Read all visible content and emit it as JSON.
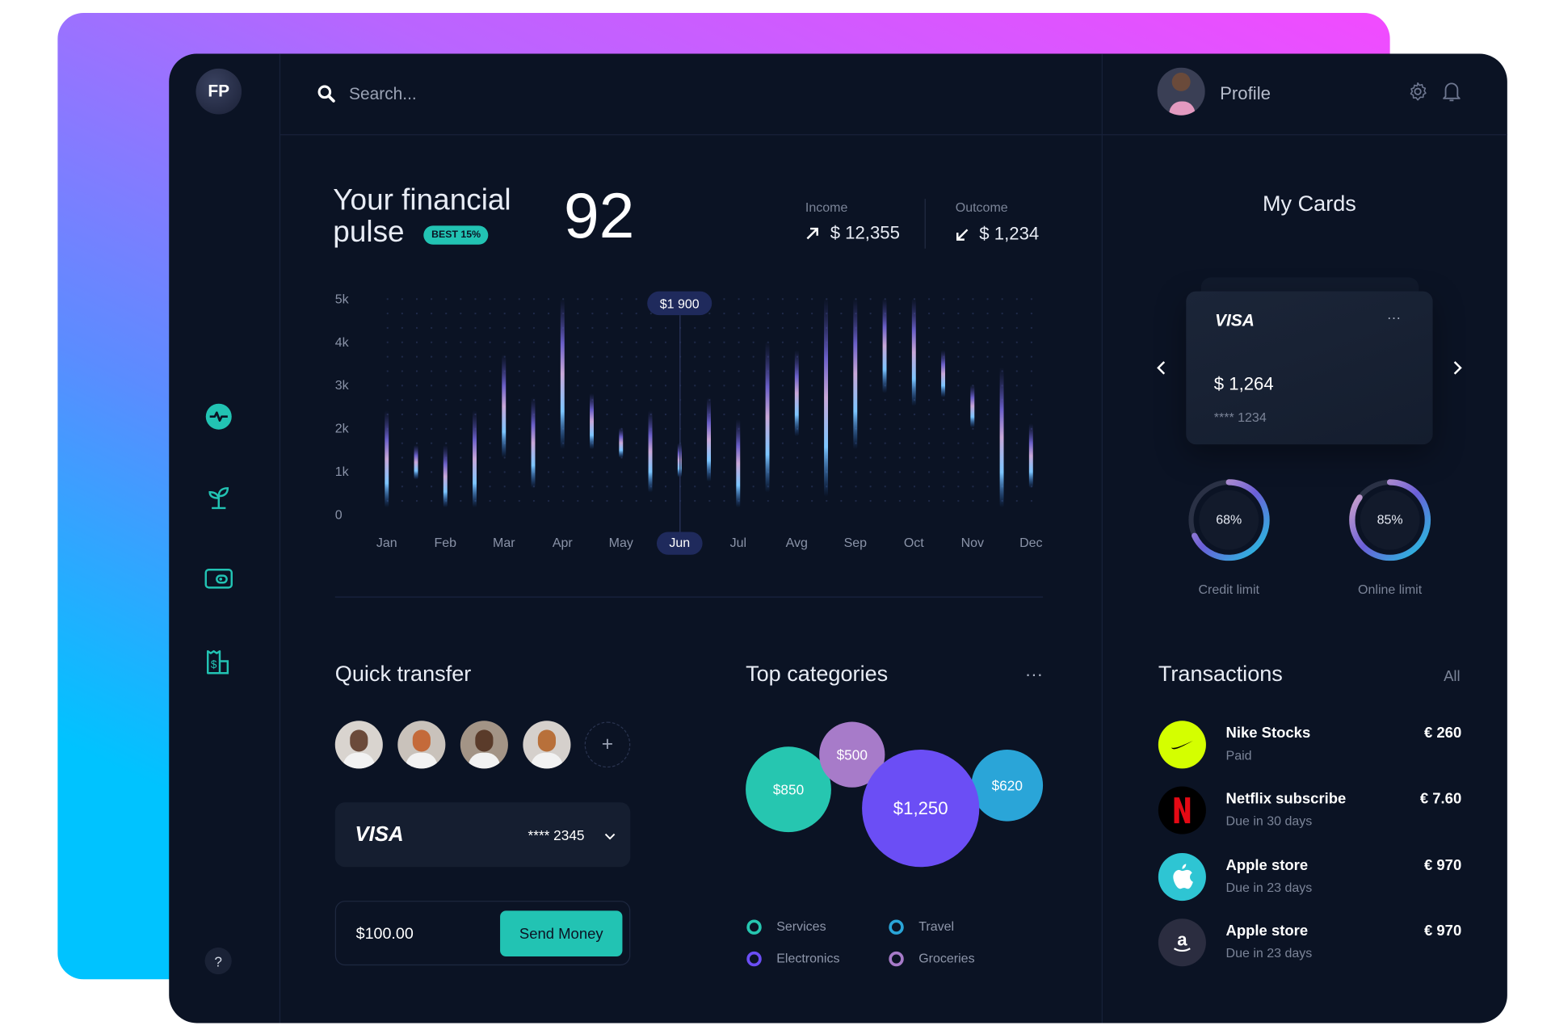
{
  "sidebar": {
    "logo": "FP",
    "items": [
      {
        "name": "pulse",
        "icon": "activity-icon"
      },
      {
        "name": "growth",
        "icon": "sprout-icon"
      },
      {
        "name": "wallet",
        "icon": "wallet-icon"
      },
      {
        "name": "receipt",
        "icon": "receipt-dollar-icon"
      }
    ],
    "help_label": "?"
  },
  "header": {
    "search_placeholder": "Search...",
    "profile_label": "Profile"
  },
  "pulse": {
    "title_line1": "Your financial",
    "title_line2": "pulse",
    "badge": "BEST 15%",
    "score": "92",
    "income_label": "Income",
    "income_value": "$ 12,355",
    "outcome_label": "Outcome",
    "outcome_value": "$ 1,234"
  },
  "chart_data": {
    "type": "bar",
    "subtype": "range-bars",
    "y_ticks": [
      "5k",
      "4k",
      "3k",
      "2k",
      "1k",
      "0"
    ],
    "ylim": [
      0,
      5000
    ],
    "x_labels": [
      "Jan",
      "Feb",
      "Mar",
      "Apr",
      "May",
      "Jun",
      "Jul",
      "Avg",
      "Sep",
      "Oct",
      "Nov",
      "Dec"
    ],
    "selected_label": "Jun",
    "tooltip": "$1 900",
    "bars": [
      {
        "low": 150,
        "high": 2400
      },
      {
        "low": 800,
        "high": 1600
      },
      {
        "low": 150,
        "high": 1600
      },
      {
        "low": 150,
        "high": 2400
      },
      {
        "low": 1300,
        "high": 3700
      },
      {
        "low": 600,
        "high": 2700
      },
      {
        "low": 1500,
        "high": 5000
      },
      {
        "low": 1500,
        "high": 2800
      },
      {
        "low": 1300,
        "high": 2000
      },
      {
        "low": 500,
        "high": 2400
      },
      {
        "low": 850,
        "high": 1650
      },
      {
        "low": 750,
        "high": 2700
      },
      {
        "low": 150,
        "high": 2200
      },
      {
        "low": 500,
        "high": 4000
      },
      {
        "low": 1800,
        "high": 3800
      },
      {
        "low": 400,
        "high": 5000
      },
      {
        "low": 1500,
        "high": 5000
      },
      {
        "low": 2800,
        "high": 5000
      },
      {
        "low": 2500,
        "high": 5000
      },
      {
        "low": 2700,
        "high": 3800
      },
      {
        "low": 2000,
        "high": 3000
      },
      {
        "low": 150,
        "high": 3400
      },
      {
        "low": 600,
        "high": 2100
      }
    ],
    "grid": "dots"
  },
  "quick_transfer": {
    "title": "Quick transfer",
    "contacts": [
      "contact-1",
      "contact-2",
      "contact-3",
      "contact-4"
    ],
    "add_label": "+",
    "card_brand": "VISA",
    "card_number": "**** 2345",
    "amount": "$100.00",
    "send_label": "Send Money"
  },
  "categories": {
    "title": "Top categories",
    "more": "···",
    "bubbles": [
      {
        "label": "$850",
        "value": 850,
        "color": "#26c6b0"
      },
      {
        "label": "$500",
        "value": 500,
        "color": "#a77bc9"
      },
      {
        "label": "$1,250",
        "value": 1250,
        "color": "#6b4ef5"
      },
      {
        "label": "$620",
        "value": 620,
        "color": "#2aa5d8"
      }
    ],
    "legend": [
      {
        "label": "Services",
        "color": "#26c6b0"
      },
      {
        "label": "Travel",
        "color": "#2aa5d8"
      },
      {
        "label": "Electronics",
        "color": "#6b4ef5"
      },
      {
        "label": "Groceries",
        "color": "#a77bc9"
      }
    ]
  },
  "cards": {
    "title": "My Cards",
    "brand": "VISA",
    "more": "···",
    "balance": "$ 1,264",
    "number": "**** 1234",
    "limits": [
      {
        "label": "Credit limit",
        "value_label": "68%",
        "percent": 68
      },
      {
        "label": "Online limit",
        "value_label": "85%",
        "percent": 85
      }
    ]
  },
  "transactions": {
    "title": "Transactions",
    "all_label": "All",
    "items": [
      {
        "name": "Nike Stocks",
        "status": "Paid",
        "amount": "€ 260",
        "icon": "nike-logo-icon",
        "color": "#d4ff00"
      },
      {
        "name": "Netflix subscribe",
        "status": "Due in 30 days",
        "amount": "€ 7.60",
        "icon": "netflix-logo-icon",
        "color": "#000000"
      },
      {
        "name": "Apple store",
        "status": "Due in 23 days",
        "amount": "€ 970",
        "icon": "apple-logo-icon",
        "color": "#2ec5d3"
      },
      {
        "name": "Apple store",
        "status": "Due in 23 days",
        "amount": "€ 970",
        "icon": "amazon-logo-icon",
        "color": "#2b2d40"
      }
    ]
  },
  "colors": {
    "accent": "#22c3b3",
    "panel": "#0b1324",
    "highlight": "#1f2a5c"
  }
}
